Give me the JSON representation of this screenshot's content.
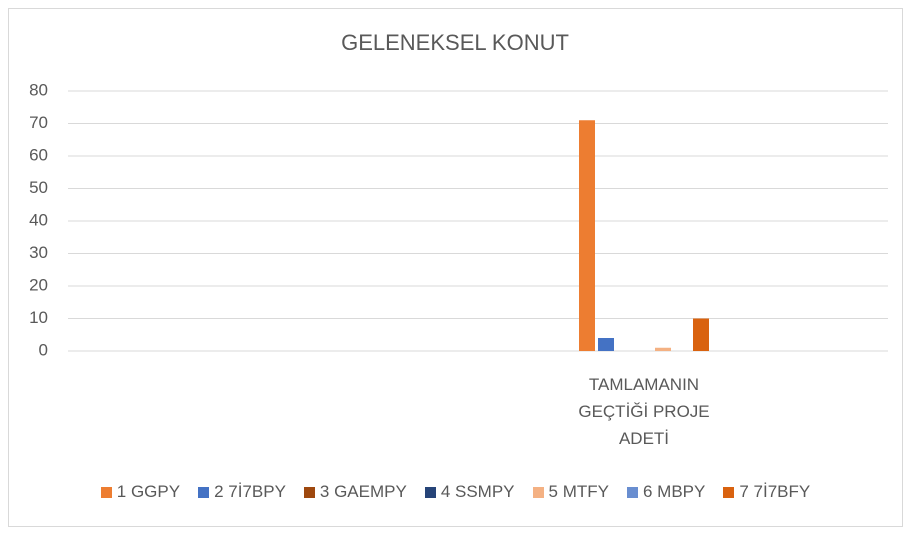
{
  "chart_data": {
    "type": "bar",
    "title": "GELENEKSEL KONUT",
    "categories": [
      null,
      "TAMLAMANIN GEÇTİĞİ PROJE ADETİ"
    ],
    "series": [
      {
        "name": "1 GGPY",
        "color": "#ed7d31",
        "values": [
          null,
          71
        ]
      },
      {
        "name": "2 7İ7BPY",
        "color": "#4472c4",
        "values": [
          null,
          4
        ]
      },
      {
        "name": "3 GAEMPY",
        "color": "#9e480e",
        "values": [
          null,
          0
        ]
      },
      {
        "name": "4 SSMPY",
        "color": "#264478",
        "values": [
          null,
          0
        ]
      },
      {
        "name": "5 MTFY",
        "color": "#f4b183",
        "values": [
          null,
          1
        ]
      },
      {
        "name": "6 MBPY",
        "color": "#698ed0",
        "values": [
          null,
          0
        ]
      },
      {
        "name": "7 7İ7BFY",
        "color": "#d9620f",
        "values": [
          null,
          10
        ]
      }
    ],
    "ylim": [
      0,
      80
    ],
    "yticks": [
      0,
      10,
      20,
      30,
      40,
      50,
      60,
      70,
      80
    ],
    "grid": true,
    "legend": "bottom"
  }
}
